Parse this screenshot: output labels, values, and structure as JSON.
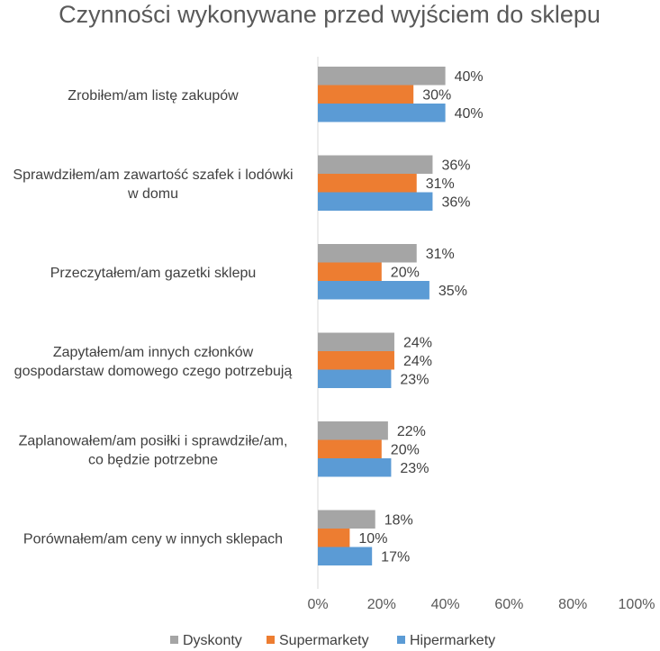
{
  "chart_data": {
    "type": "bar",
    "orientation": "horizontal",
    "title": "Czynności wykonywane przed wyjściem do sklepu",
    "categories": [
      [
        "Zrobiłem/am listę zakupów"
      ],
      [
        "Sprawdziłem/am zawartość szafek i lodówki",
        "w domu"
      ],
      [
        "Przeczytałem/am gazetki sklepu"
      ],
      [
        "Zapytałem/am innych członków",
        "gospodarstaw domowego czego potrzebują"
      ],
      [
        "Zaplanowałem/am posiłki i sprawdziłe/am,",
        "co będzie potrzebne"
      ],
      [
        "Porównałem/am ceny w innych sklepach"
      ]
    ],
    "series": [
      {
        "name": "Dyskonty",
        "color": "#a5a5a5",
        "values": [
          40,
          36,
          31,
          24,
          22,
          18
        ]
      },
      {
        "name": "Supermarkety",
        "color": "#ed7d31",
        "values": [
          30,
          31,
          20,
          24,
          20,
          10
        ]
      },
      {
        "name": "Hipermarkety",
        "color": "#5b9bd5",
        "values": [
          40,
          36,
          35,
          23,
          23,
          17
        ]
      }
    ],
    "xlim": [
      0,
      100
    ],
    "xticks": [
      "0%",
      "20%",
      "40%",
      "60%",
      "80%",
      "100%"
    ],
    "value_suffix": "%",
    "legend_position": "bottom",
    "grid": false
  }
}
